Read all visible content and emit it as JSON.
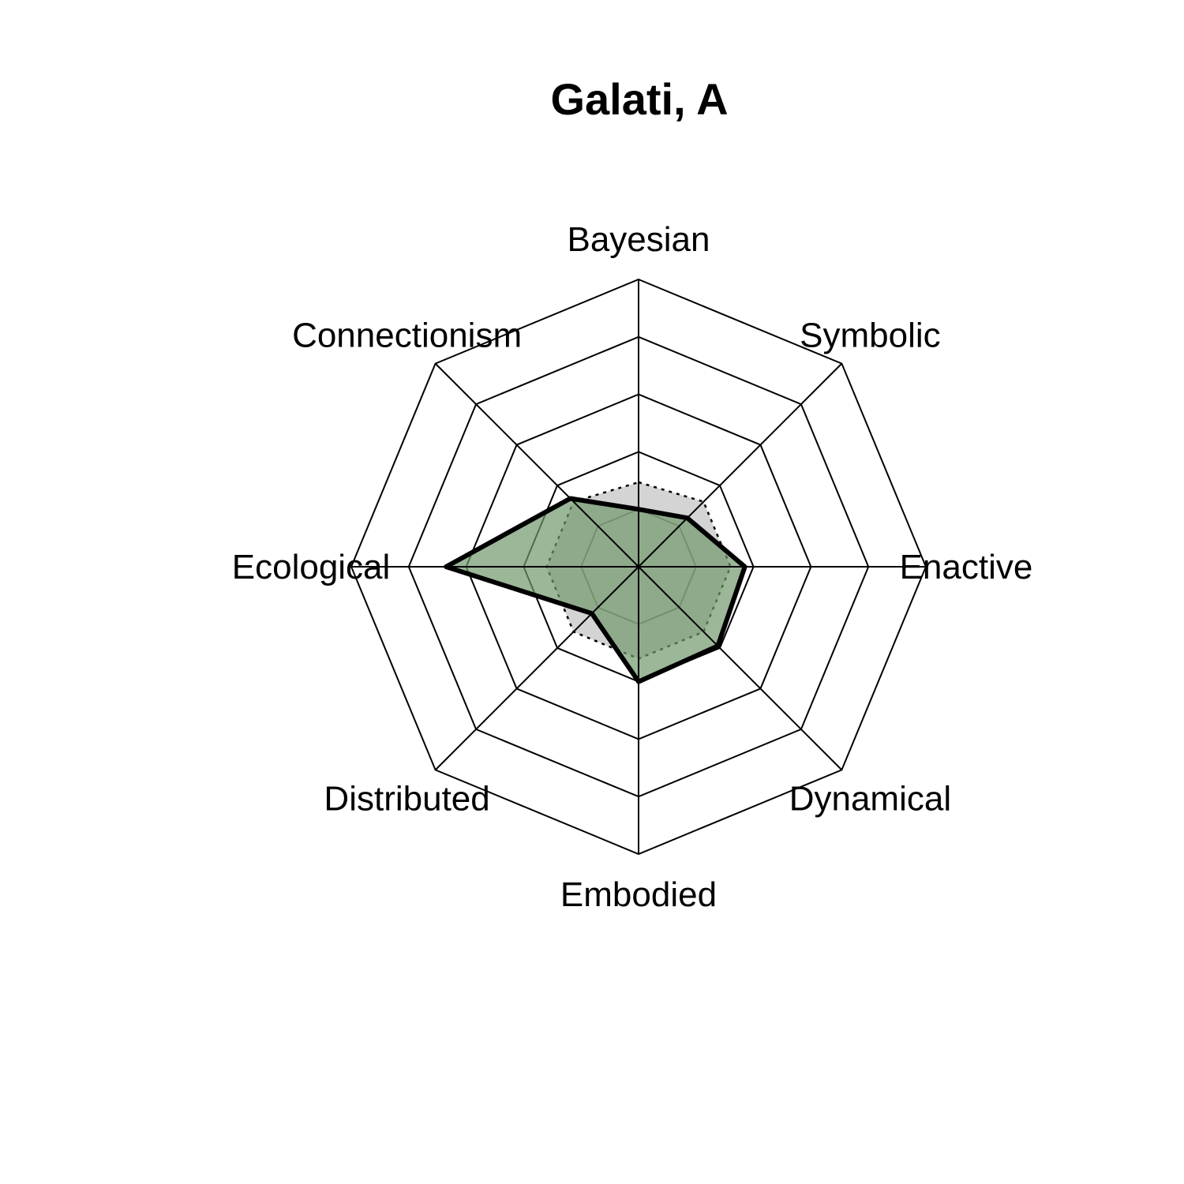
{
  "chart_data": {
    "type": "radar",
    "title": "Galati, A",
    "axes": [
      "Bayesian",
      "Symbolic",
      "Enactive",
      "Dynamical",
      "Embodied",
      "Distributed",
      "Ecological",
      "Connectionism"
    ],
    "rmax": 5,
    "grid_levels": 5,
    "series": [
      {
        "values": [
          1.0,
          1.2,
          1.85,
          1.95,
          2.0,
          1.15,
          3.35,
          1.68
        ],
        "fill": "#70986c",
        "fill_opacity": 0.7,
        "stroke": "#000000",
        "line": "solid"
      },
      {
        "values": [
          1.47,
          1.6,
          1.6,
          1.6,
          1.6,
          1.6,
          1.6,
          1.6
        ],
        "fill": "#bdbdbd",
        "fill_opacity": 0.65,
        "stroke": "#000000",
        "line": "dotted"
      }
    ]
  }
}
